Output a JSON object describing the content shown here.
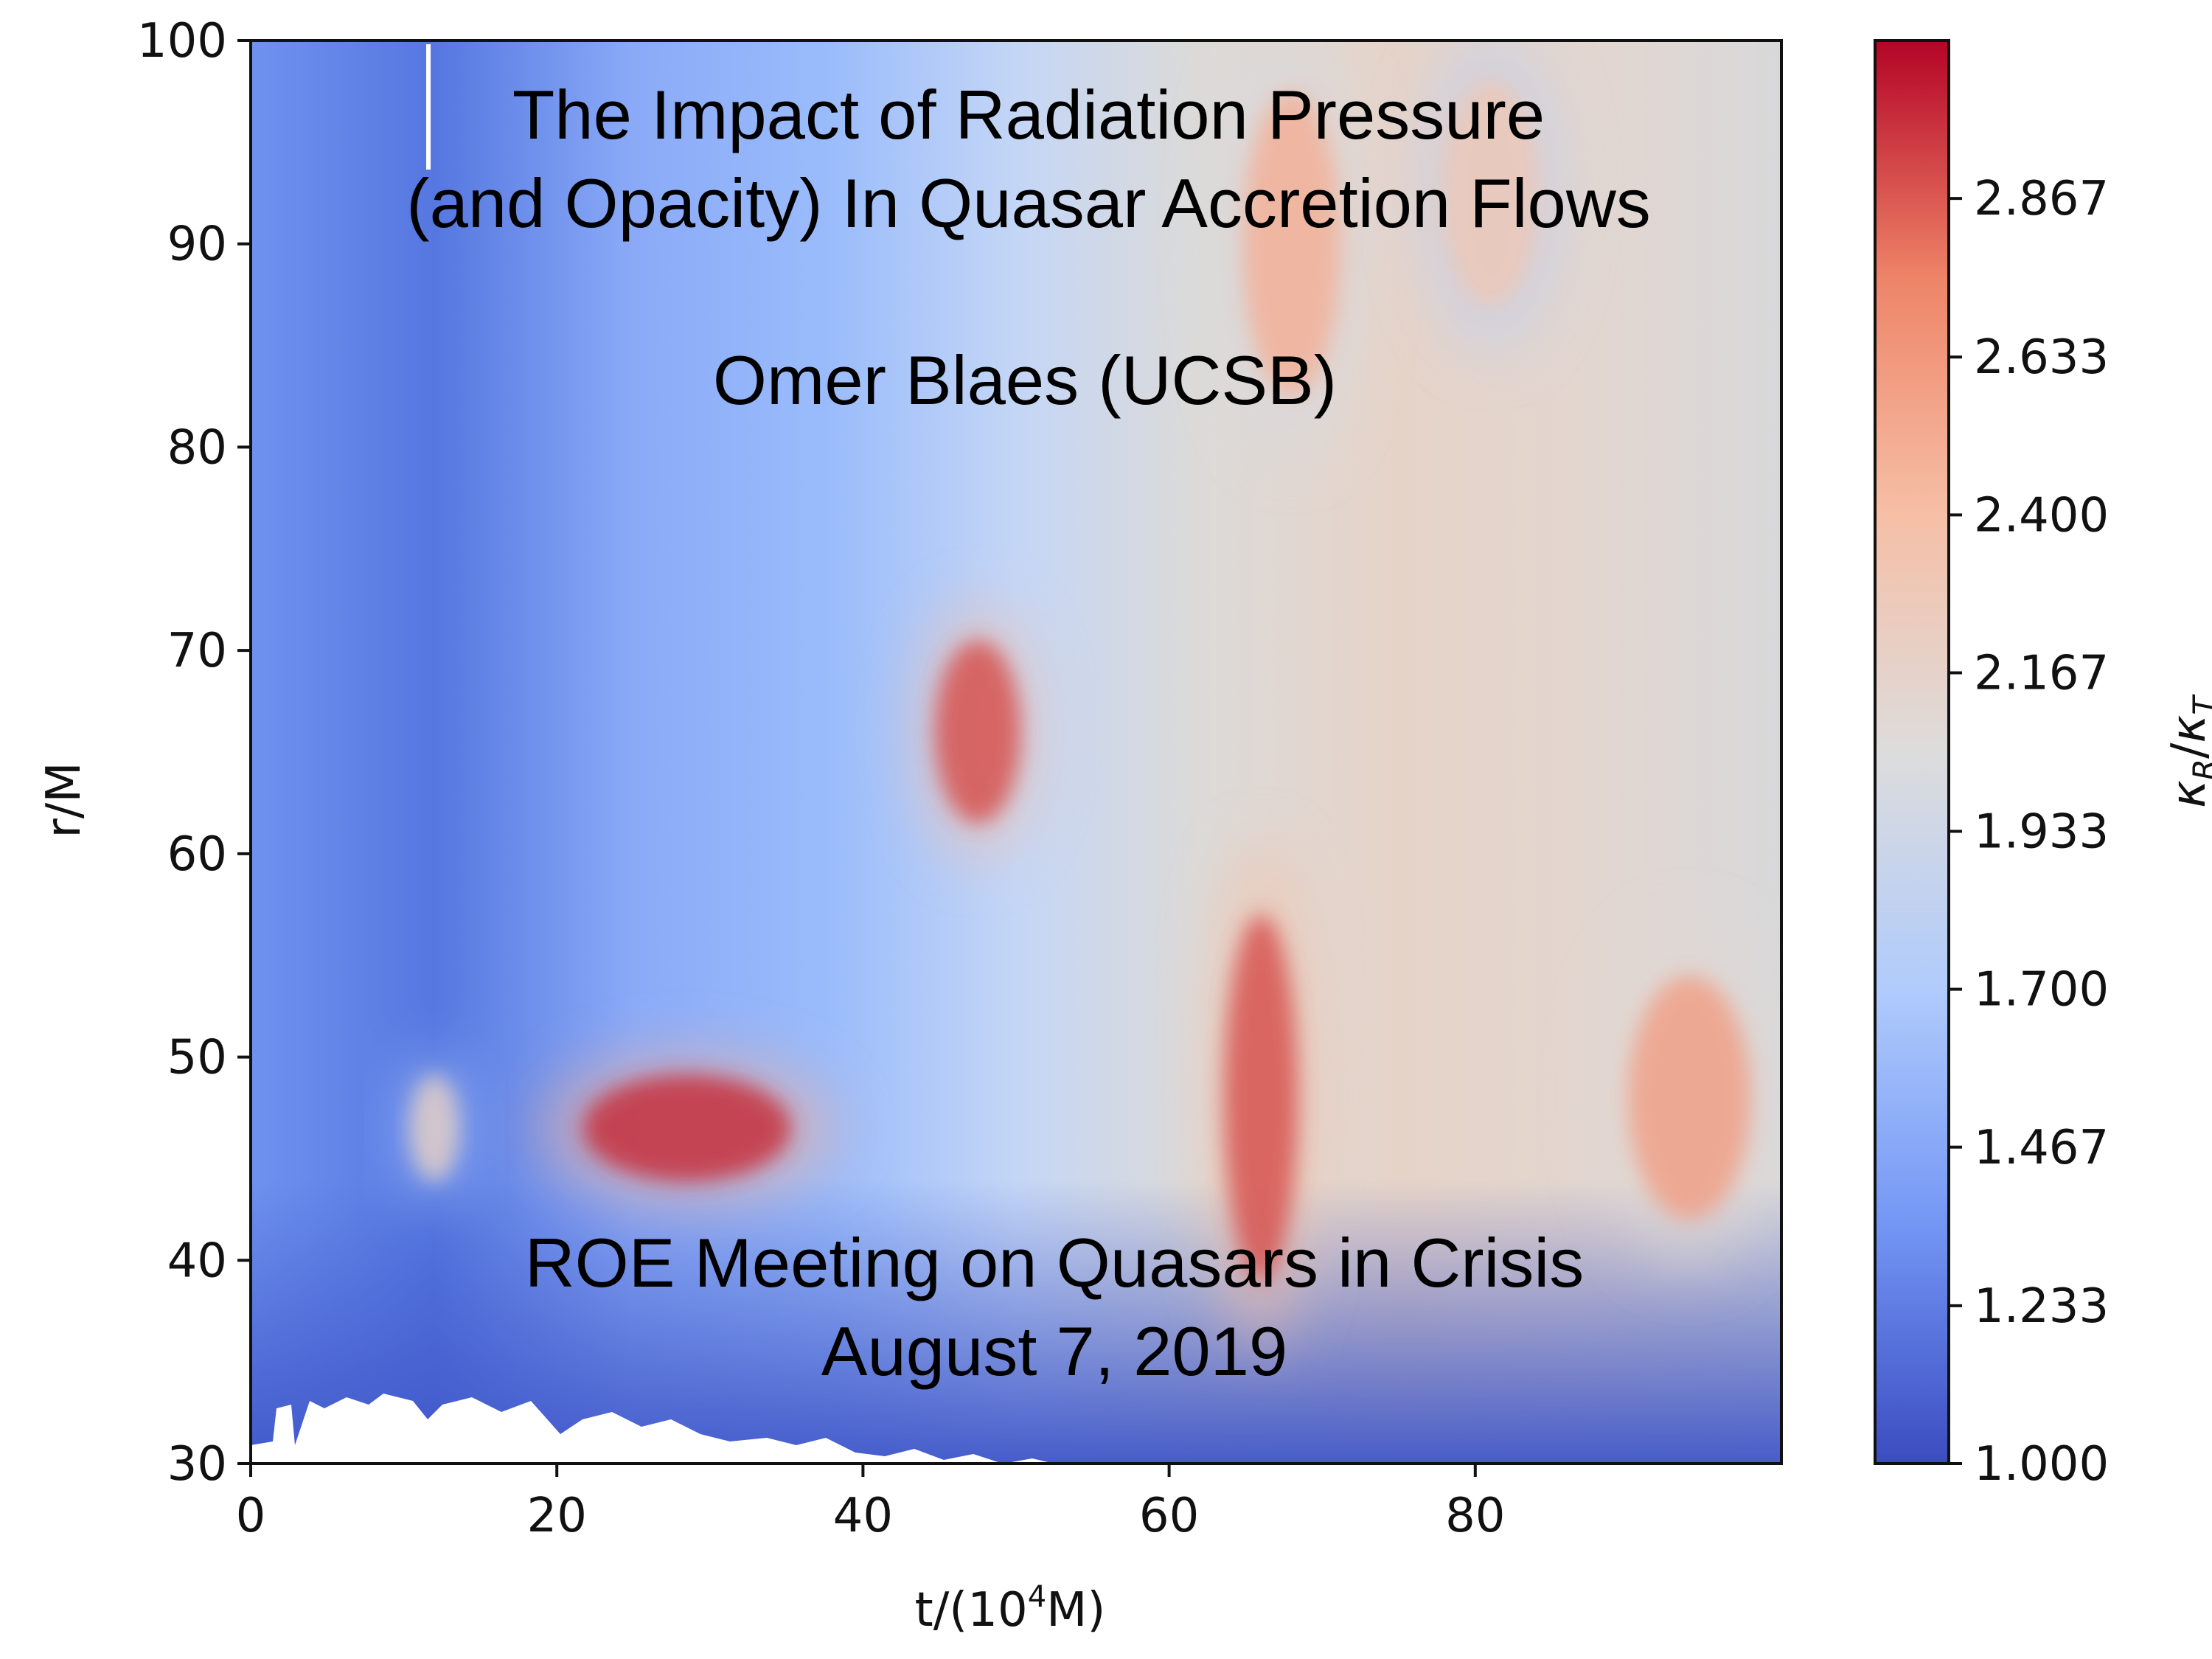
{
  "slide": {
    "title_line1": "The Impact of Radiation Pressure",
    "title_line2": "(and Opacity) In Quasar Accretion Flows",
    "author": "Omer Blaes (UCSB)",
    "meeting": "ROE Meeting on Quasars in Crisis",
    "date": "August 7, 2019"
  },
  "chart_data": {
    "type": "heatmap",
    "title": "",
    "xlabel": "t/(10",
    "xlabel_sup": "4",
    "xlabel_tail": "M)",
    "ylabel": "r/M",
    "xlim": [
      0,
      100
    ],
    "ylim": [
      30,
      100
    ],
    "x_ticks": [
      0,
      20,
      40,
      60,
      80
    ],
    "y_ticks": [
      30,
      40,
      50,
      60,
      70,
      80,
      90,
      100
    ],
    "colorbar": {
      "label": "κR/κT",
      "range": [
        1.0,
        3.1
      ],
      "ticks": [
        "1.000",
        "1.233",
        "1.467",
        "1.700",
        "1.933",
        "2.167",
        "2.400",
        "2.633",
        "2.867"
      ],
      "colormap": "coolwarm",
      "colors": [
        "#3b4cc0",
        "#7396f5",
        "#b0cbfc",
        "#dddcdc",
        "#f6bfa6",
        "#ee8468",
        "#b40426"
      ]
    },
    "features": [
      {
        "t": [
          44,
          51
        ],
        "r": [
          60,
          72
        ],
        "value": 2.9
      },
      {
        "t": [
          20,
          37
        ],
        "r": [
          43,
          50
        ],
        "value": 3.0
      },
      {
        "t": [
          10,
          14
        ],
        "r": [
          43,
          50
        ],
        "value": 2.2
      },
      {
        "t": [
          63,
          69
        ],
        "r": [
          36,
          60
        ],
        "value": 2.9
      },
      {
        "t": [
          89,
          99
        ],
        "r": [
          40,
          56
        ],
        "value": 2.6
      },
      {
        "t": [
          64,
          72
        ],
        "r": [
          80,
          100
        ],
        "value": 2.5
      },
      {
        "t": [
          77,
          85
        ],
        "r": [
          85,
          100
        ],
        "value": 2.3
      }
    ]
  }
}
